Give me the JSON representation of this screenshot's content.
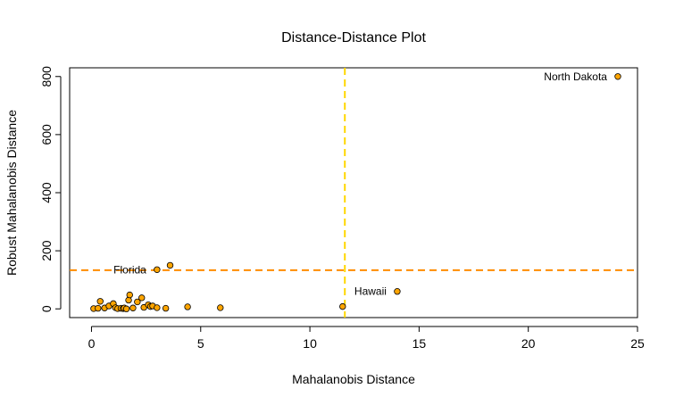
{
  "chart_data": {
    "type": "scatter",
    "title": "Distance-Distance Plot",
    "xlabel": "Mahalanobis Distance",
    "ylabel": "Robust Mahalanobis Distance",
    "xlim": [
      -1,
      25
    ],
    "ylim": [
      -30,
      830
    ],
    "xticks": [
      0,
      5,
      10,
      15,
      20,
      25
    ],
    "yticks": [
      0,
      200,
      400,
      600,
      800
    ],
    "point_color": "#FFA500",
    "point_edge": "#000000",
    "cutoff_x": 11.6,
    "cutoff_y": 133,
    "cutoff_x_color": "#FFD700",
    "cutoff_y_color": "#FF8C00",
    "points": [
      {
        "x": 0.1,
        "y": 1
      },
      {
        "x": 0.3,
        "y": 2
      },
      {
        "x": 0.4,
        "y": 26
      },
      {
        "x": 0.6,
        "y": 3
      },
      {
        "x": 0.8,
        "y": 10
      },
      {
        "x": 1.0,
        "y": 18
      },
      {
        "x": 1.1,
        "y": 4
      },
      {
        "x": 1.2,
        "y": 1
      },
      {
        "x": 1.35,
        "y": 2
      },
      {
        "x": 1.45,
        "y": 1
      },
      {
        "x": 1.5,
        "y": 3
      },
      {
        "x": 1.6,
        "y": 0
      },
      {
        "x": 1.7,
        "y": 30
      },
      {
        "x": 1.75,
        "y": 48
      },
      {
        "x": 1.9,
        "y": 3
      },
      {
        "x": 2.1,
        "y": 24
      },
      {
        "x": 2.3,
        "y": 38
      },
      {
        "x": 2.4,
        "y": 5
      },
      {
        "x": 2.6,
        "y": 14
      },
      {
        "x": 2.7,
        "y": 8
      },
      {
        "x": 2.8,
        "y": 10
      },
      {
        "x": 3.0,
        "y": 4
      },
      {
        "x": 3.0,
        "y": 135,
        "label": "Florida"
      },
      {
        "x": 3.4,
        "y": 2
      },
      {
        "x": 3.6,
        "y": 150
      },
      {
        "x": 4.4,
        "y": 7
      },
      {
        "x": 5.9,
        "y": 4
      },
      {
        "x": 11.5,
        "y": 8
      },
      {
        "x": 14.0,
        "y": 60,
        "label": "Hawaii"
      },
      {
        "x": 24.1,
        "y": 800,
        "label": "North Dakota"
      }
    ]
  }
}
